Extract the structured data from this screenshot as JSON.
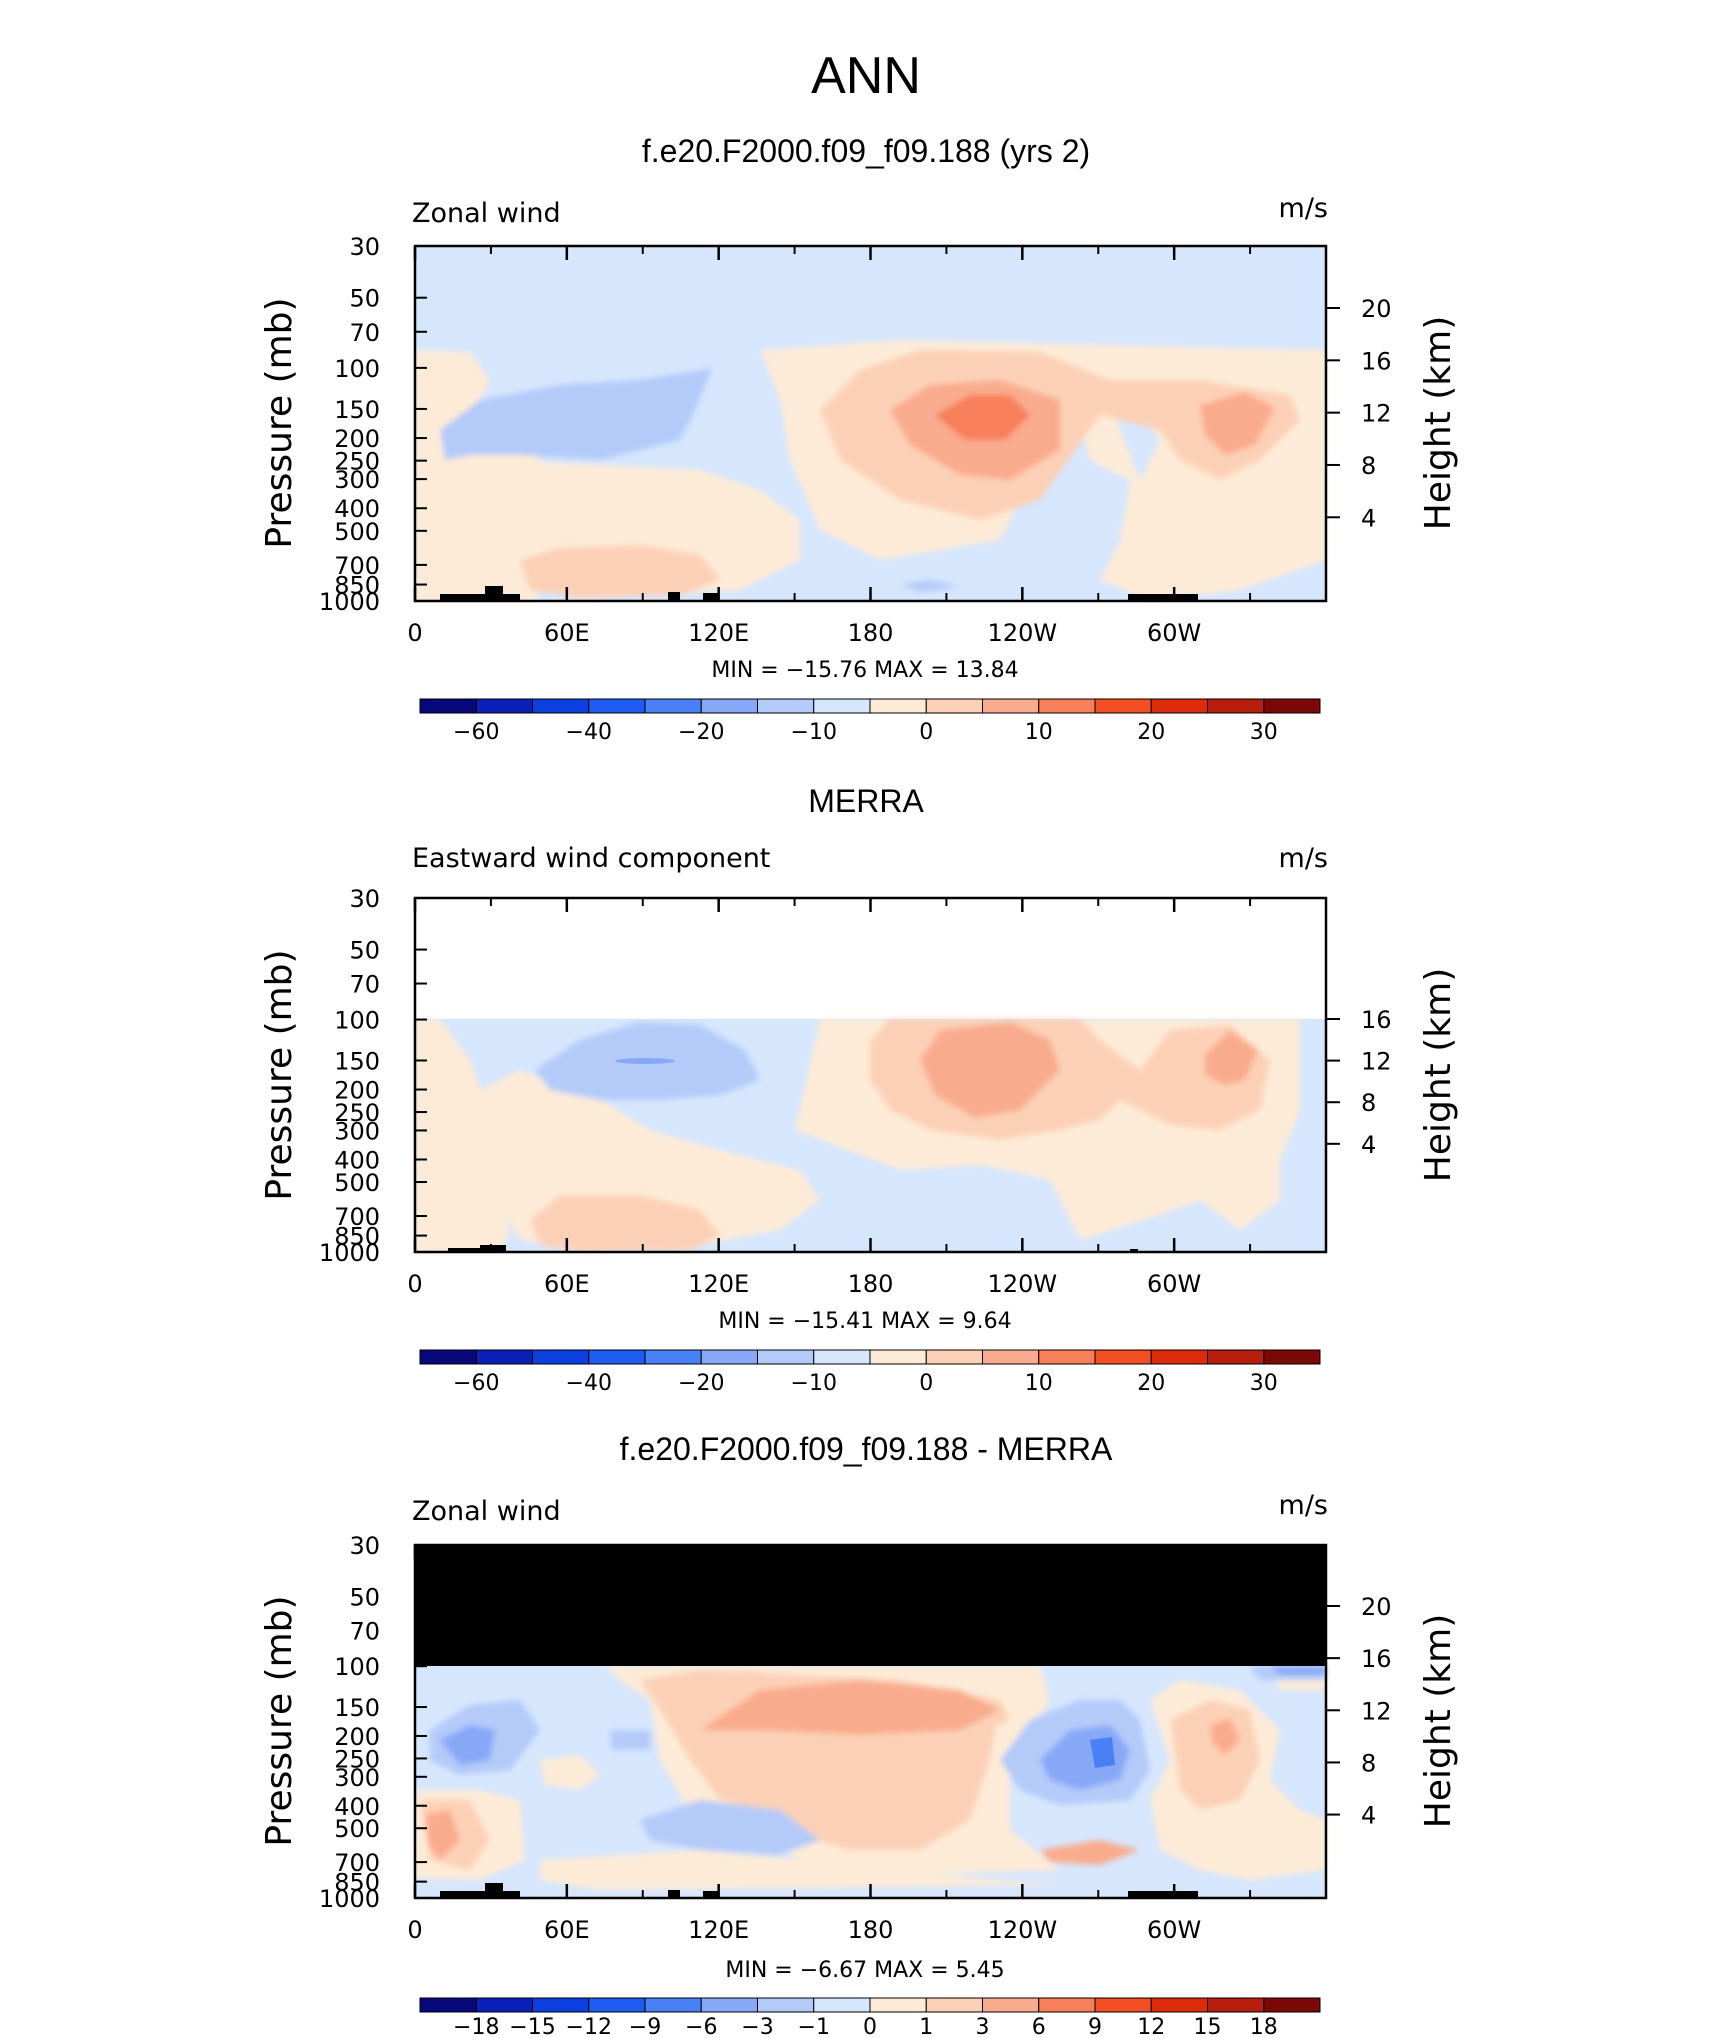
{
  "page_title": "ANN",
  "colors": {
    "main_scale": [
      "#08087a",
      "#0a20b8",
      "#0b3fe0",
      "#1e5cf2",
      "#4a80f5",
      "#86a8f7",
      "#b4caf9",
      "#d6e6fd",
      "#fdebd7",
      "#fcd0b6",
      "#f9ab8d",
      "#f77f5a",
      "#f44e25",
      "#de2b0b",
      "#b81e0d",
      "#7d0808"
    ],
    "diff_scale": [
      "#08087a",
      "#0a20b8",
      "#0b3fe0",
      "#1e5cf2",
      "#4a80f5",
      "#86a8f7",
      "#b4caf9",
      "#d6e6fd",
      "#fdebd7",
      "#fcd0b6",
      "#f9ab8d",
      "#f77f5a",
      "#f44e25",
      "#de2b0b",
      "#b81e0d",
      "#7d0808"
    ],
    "missing": "#000000"
  },
  "chart_data": [
    {
      "type": "heatmap",
      "title": "f.e20.F2000.f09_f09.188 (yrs 2)",
      "left_string": "Zonal wind",
      "right_string": "m/s",
      "ylabel": "Pressure (mb)",
      "ylabel_right": "Height (km)",
      "x_ticks": [
        "0",
        "60E",
        "120E",
        "180",
        "120W",
        "60W"
      ],
      "y_ticks": [
        "30",
        "50",
        "70",
        "100",
        "150",
        "200",
        "250",
        "300",
        "400",
        "500",
        "700",
        "850",
        "1000"
      ],
      "height_ticks": [
        "20",
        "16",
        "12",
        "8",
        "4"
      ],
      "min_max": "MIN = −15.76   MAX =  13.84",
      "colorbar_labels": [
        "−60",
        "−40",
        "−20",
        "−10",
        "0",
        "10",
        "20",
        "30"
      ],
      "min": -15.76,
      "max": 13.84
    },
    {
      "type": "heatmap",
      "title": "MERRA",
      "left_string": "Eastward wind component",
      "right_string": "m/s",
      "ylabel": "Pressure (mb)",
      "ylabel_right": "Height (km)",
      "x_ticks": [
        "0",
        "60E",
        "120E",
        "180",
        "120W",
        "60W"
      ],
      "y_ticks": [
        "30",
        "50",
        "70",
        "100",
        "150",
        "200",
        "250",
        "300",
        "400",
        "500",
        "700",
        "850",
        "1000"
      ],
      "height_ticks": [
        "16",
        "12",
        "8",
        "4"
      ],
      "min_max": "MIN = −15.41   MAX =   9.64",
      "colorbar_labels": [
        "−60",
        "−40",
        "−20",
        "−10",
        "0",
        "10",
        "20",
        "30"
      ],
      "min": -15.41,
      "max": 9.64
    },
    {
      "type": "heatmap",
      "title": "f.e20.F2000.f09_f09.188 - MERRA",
      "left_string": "Zonal wind",
      "right_string": "m/s",
      "ylabel": "Pressure (mb)",
      "ylabel_right": "Height (km)",
      "x_ticks": [
        "0",
        "60E",
        "120E",
        "180",
        "120W",
        "60W"
      ],
      "y_ticks": [
        "30",
        "50",
        "70",
        "100",
        "150",
        "200",
        "250",
        "300",
        "400",
        "500",
        "700",
        "850",
        "1000"
      ],
      "height_ticks": [
        "20",
        "16",
        "12",
        "8",
        "4"
      ],
      "min_max": "MIN =  −6.67   MAX =   5.45",
      "colorbar_labels": [
        "−18",
        "−15",
        "−12",
        "−9",
        "−6",
        "−3",
        "−1",
        "0",
        "1",
        "3",
        "6",
        "9",
        "12",
        "15",
        "18"
      ],
      "min": -6.67,
      "max": 5.45
    }
  ]
}
